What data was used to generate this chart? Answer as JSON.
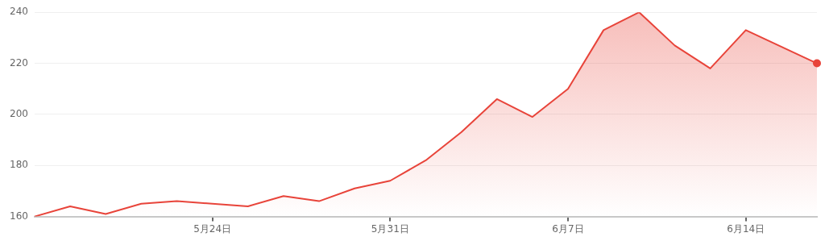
{
  "chart_data": {
    "type": "area",
    "categories": [
      null,
      null,
      null,
      null,
      null,
      "5月24日",
      null,
      null,
      null,
      null,
      "5月31日",
      null,
      null,
      null,
      null,
      "6月7日",
      null,
      null,
      null,
      null,
      "6月14日",
      null,
      null
    ],
    "series": [
      {
        "color": "#e8443a",
        "values": [
          160,
          164,
          161,
          165,
          166,
          165,
          164,
          168,
          166,
          171,
          174,
          182,
          193,
          206,
          199,
          210,
          233,
          240,
          227,
          218,
          233,
          null,
          220
        ]
      }
    ],
    "ylim": [
      160,
      240
    ],
    "yticks": [
      160,
      180,
      200,
      220,
      240
    ],
    "grid": "y",
    "legend": false
  }
}
